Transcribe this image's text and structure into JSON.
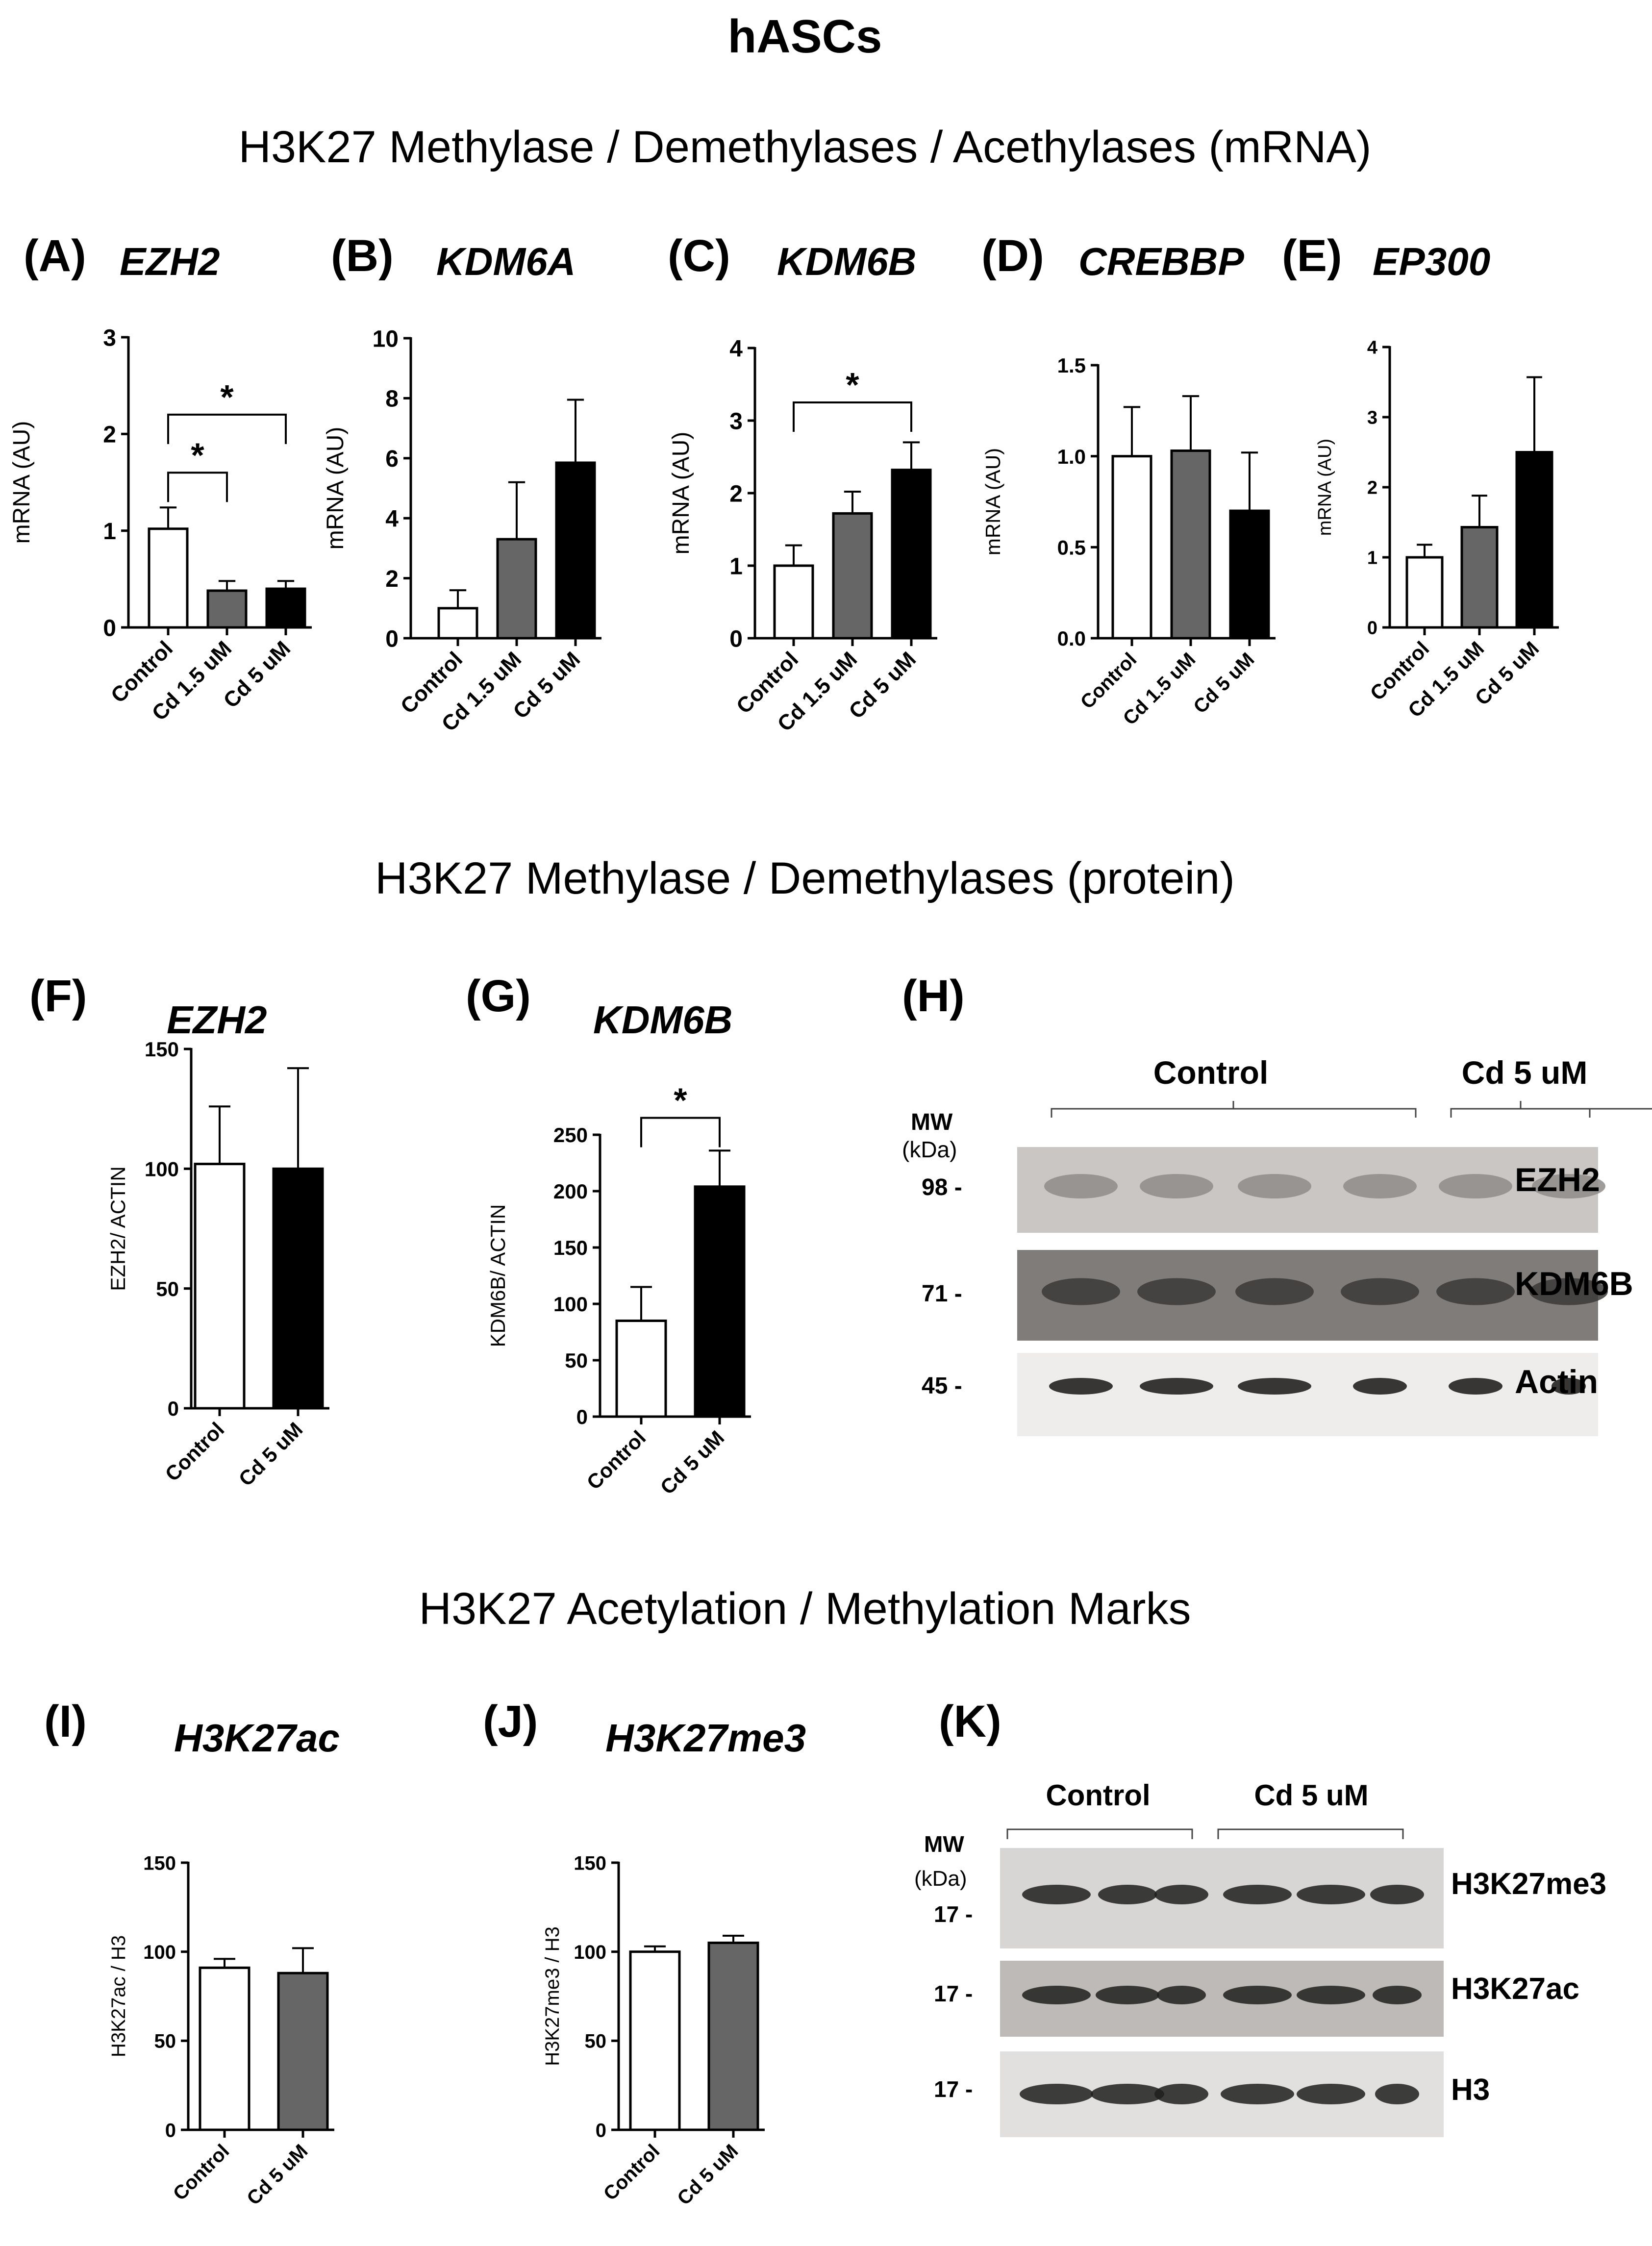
{
  "title": "hASCs",
  "sections": [
    "H3K27 Methylase / Demethylases / Acethylases (mRNA)",
    "H3K27 Methylase / Demethylases (protein)",
    "H3K27 Acetylation / Methylation Marks"
  ],
  "panels": {
    "A": {
      "letter": "(A)",
      "title": "EZH2"
    },
    "B": {
      "letter": "(B)",
      "title": "KDM6A"
    },
    "C": {
      "letter": "(C)",
      "title": "KDM6B"
    },
    "D": {
      "letter": "(D)",
      "title": "CREBBP"
    },
    "E": {
      "letter": "(E)",
      "title": "EP300"
    },
    "F": {
      "letter": "(F)",
      "title": "EZH2"
    },
    "G": {
      "letter": "(G)",
      "title": "KDM6B"
    },
    "H": {
      "letter": "(H)"
    },
    "I": {
      "letter": "(I)",
      "title": "H3K27ac"
    },
    "J": {
      "letter": "(J)",
      "title": "H3K27me3"
    },
    "K": {
      "letter": "(K)"
    }
  },
  "blot_h": {
    "groups": [
      "Control",
      "Cd 5 uM"
    ],
    "mw_header": [
      "MW",
      "(kDa)"
    ],
    "rows": [
      {
        "mw": "98 -",
        "label": "EZH2"
      },
      {
        "mw": "71 -",
        "label": "KDM6B"
      },
      {
        "mw": "45 -",
        "label": "Actin"
      }
    ]
  },
  "blot_k": {
    "groups": [
      "Control",
      "Cd 5 uM"
    ],
    "mw_header": [
      "MW",
      "(kDa)"
    ],
    "rows": [
      {
        "mw": "17 -",
        "label": "H3K27me3"
      },
      {
        "mw": "17 -",
        "label": "H3K27ac"
      },
      {
        "mw": "17 -",
        "label": "H3"
      }
    ]
  },
  "colors": {
    "control": "#ffffff",
    "cd15": "#666666",
    "cd5": "#000000",
    "cd5_marks": "#666666"
  },
  "chart_data": [
    {
      "panel": "A",
      "type": "bar",
      "categories": [
        "Control",
        "Cd 1.5 uM",
        "Cd 5 uM"
      ],
      "values": [
        1.02,
        0.38,
        0.4
      ],
      "errors": [
        0.22,
        0.1,
        0.08
      ],
      "ylabel": "mRNA (AU)",
      "ylim": [
        0,
        3
      ],
      "yticks": [
        "0",
        "1",
        "2",
        "3"
      ],
      "significance": [
        {
          "from": 0,
          "to": 1,
          "label": "*"
        },
        {
          "from": 0,
          "to": 2,
          "label": "*"
        }
      ]
    },
    {
      "panel": "B",
      "type": "bar",
      "categories": [
        "Control",
        "Cd 1.5 uM",
        "Cd 5 uM"
      ],
      "values": [
        1.0,
        3.3,
        5.85
      ],
      "errors": [
        0.6,
        1.9,
        2.1
      ],
      "ylabel": "mRNA (AU)",
      "ylim": [
        0,
        10
      ],
      "yticks": [
        "0",
        "2",
        "4",
        "6",
        "8",
        "10"
      ],
      "significance": []
    },
    {
      "panel": "C",
      "type": "bar",
      "categories": [
        "Control",
        "Cd 1.5 uM",
        "Cd 5 uM"
      ],
      "values": [
        1.0,
        1.72,
        2.32
      ],
      "errors": [
        0.28,
        0.3,
        0.38
      ],
      "ylabel": "mRNA (AU)",
      "ylim": [
        0,
        4
      ],
      "yticks": [
        "0",
        "1",
        "2",
        "3",
        "4"
      ],
      "significance": [
        {
          "from": 0,
          "to": 2,
          "label": "*"
        }
      ]
    },
    {
      "panel": "D",
      "type": "bar",
      "categories": [
        "Control",
        "Cd 1.5 uM",
        "Cd 5 uM"
      ],
      "values": [
        1.0,
        1.03,
        0.7
      ],
      "errors": [
        0.27,
        0.3,
        0.32
      ],
      "ylabel": "mRNA (AU)",
      "ylim": [
        0,
        1.5
      ],
      "yticks": [
        "0.0",
        "0.5",
        "1.0",
        "1.5"
      ],
      "significance": []
    },
    {
      "panel": "E",
      "type": "bar",
      "categories": [
        "Control",
        "Cd 1.5 uM",
        "Cd 5 uM"
      ],
      "values": [
        1.0,
        1.43,
        2.5
      ],
      "errors": [
        0.18,
        0.45,
        1.07
      ],
      "ylabel": "mRNA (AU)",
      "ylim": [
        0,
        4
      ],
      "yticks": [
        "0",
        "1",
        "2",
        "3",
        "4"
      ],
      "significance": []
    },
    {
      "panel": "F",
      "type": "bar",
      "categories": [
        "Control",
        "Cd 5 uM"
      ],
      "values": [
        102,
        100
      ],
      "errors": [
        24,
        42
      ],
      "ylabel": "EZH2/ ACTIN",
      "ylim": [
        0,
        150
      ],
      "yticks": [
        "0",
        "50",
        "100",
        "150"
      ],
      "significance": []
    },
    {
      "panel": "G",
      "type": "bar",
      "categories": [
        "Control",
        "Cd 5 uM"
      ],
      "values": [
        85,
        204
      ],
      "errors": [
        30,
        32
      ],
      "ylabel": "KDM6B/ ACTIN",
      "ylim": [
        0,
        250
      ],
      "yticks": [
        "0",
        "50",
        "100",
        "150",
        "200",
        "250"
      ],
      "significance": [
        {
          "from": 0,
          "to": 1,
          "label": "*"
        }
      ]
    },
    {
      "panel": "I",
      "type": "bar",
      "categories": [
        "Control",
        "Cd 5 uM"
      ],
      "values": [
        91,
        88
      ],
      "errors": [
        5,
        14
      ],
      "ylabel": "H3K27ac / H3",
      "ylim": [
        0,
        150
      ],
      "yticks": [
        "0",
        "50",
        "100",
        "150"
      ],
      "significance": []
    },
    {
      "panel": "J",
      "type": "bar",
      "categories": [
        "Control",
        "Cd 5 uM"
      ],
      "values": [
        100,
        105
      ],
      "errors": [
        3,
        4
      ],
      "ylabel": "H3K27me3 / H3",
      "ylim": [
        0,
        150
      ],
      "yticks": [
        "0",
        "50",
        "100",
        "150"
      ],
      "significance": []
    }
  ]
}
